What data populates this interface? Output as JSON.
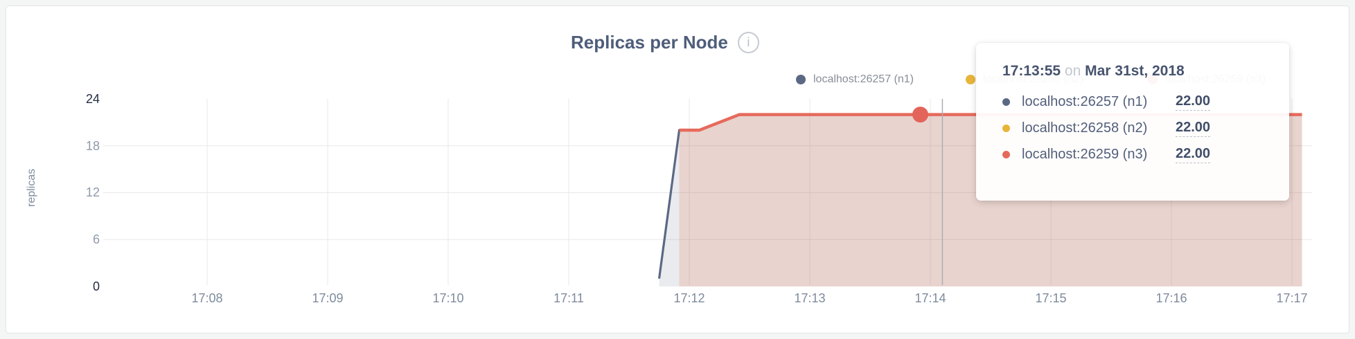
{
  "header": {
    "title": "Replicas per Node",
    "info_icon": "i"
  },
  "tooltip": {
    "time": "17:13:55",
    "conj": "on",
    "date": "Mar 31st, 2018",
    "values": [
      "22.00",
      "22.00",
      "22.00"
    ]
  },
  "chart_data": {
    "type": "area",
    "title": "Replicas per Node",
    "ylabel": "replicas",
    "ylim": [
      0,
      24
    ],
    "yticks": [
      0,
      6,
      12,
      18,
      24
    ],
    "grid_yticks": [
      6,
      12,
      18
    ],
    "x_tick_labels": [
      "17:08",
      "17:09",
      "17:10",
      "17:11",
      "17:12",
      "17:13",
      "17:14",
      "17:15",
      "17:16",
      "17:17"
    ],
    "x_base_time": "17:08:00",
    "x_seconds_per_tick": 60,
    "legend_position": "top-right",
    "series": [
      {
        "name": "localhost:26257 (n1)",
        "color": "#5b6884",
        "fill": "rgba(91,104,132,0.13)",
        "stroke_width": 3.2,
        "points": [
          [
            225,
            1
          ],
          [
            235,
            20
          ],
          [
            245,
            20
          ],
          [
            265,
            22
          ],
          [
            545,
            22
          ]
        ]
      },
      {
        "name": "localhost:26258 (n2)",
        "color": "#e8b53a",
        "fill": "rgba(232,181,58,0.05)",
        "stroke_width": 3.2,
        "points": [
          [
            235,
            20
          ],
          [
            245,
            20
          ],
          [
            265,
            22
          ],
          [
            545,
            22
          ]
        ]
      },
      {
        "name": "localhost:26259 (n3)",
        "color": "#e66a5c",
        "fill": "rgba(230,106,92,0.17)",
        "stroke_width": 4.5,
        "points": [
          [
            235,
            20
          ],
          [
            245,
            20
          ],
          [
            265,
            22
          ],
          [
            545,
            22
          ]
        ]
      }
    ],
    "hover": {
      "time": "17:13:55",
      "t": 355,
      "value": 22,
      "guideline_t": 366,
      "highlighted_series": "localhost:26259 (n3)",
      "dot_color": "#e2645a"
    }
  }
}
